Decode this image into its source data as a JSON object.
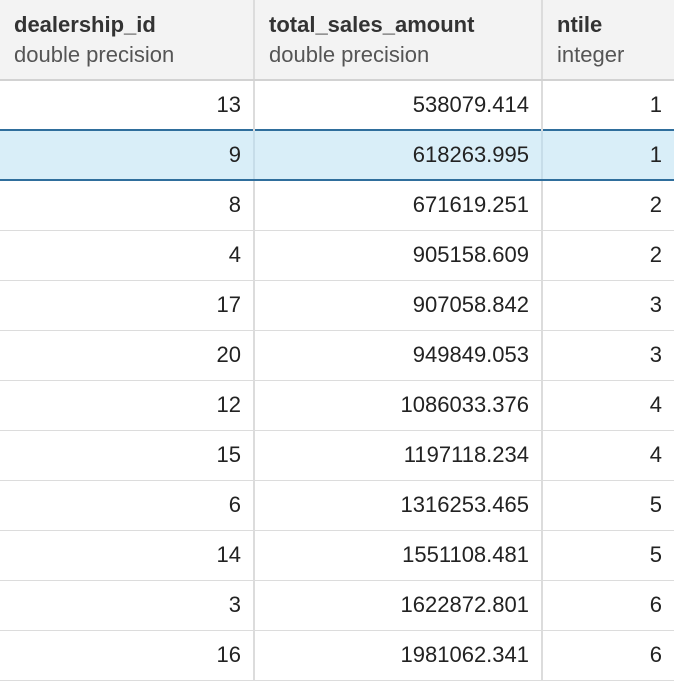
{
  "columns": [
    {
      "name": "dealership_id",
      "type": "double precision"
    },
    {
      "name": "total_sales_amount",
      "type": "double precision"
    },
    {
      "name": "ntile",
      "type": "integer"
    }
  ],
  "rows": [
    {
      "dealership_id": "13",
      "total_sales_amount": "538079.414",
      "ntile": "1",
      "selected": false
    },
    {
      "dealership_id": "9",
      "total_sales_amount": "618263.995",
      "ntile": "1",
      "selected": true
    },
    {
      "dealership_id": "8",
      "total_sales_amount": "671619.251",
      "ntile": "2",
      "selected": false
    },
    {
      "dealership_id": "4",
      "total_sales_amount": "905158.609",
      "ntile": "2",
      "selected": false
    },
    {
      "dealership_id": "17",
      "total_sales_amount": "907058.842",
      "ntile": "3",
      "selected": false
    },
    {
      "dealership_id": "20",
      "total_sales_amount": "949849.053",
      "ntile": "3",
      "selected": false
    },
    {
      "dealership_id": "12",
      "total_sales_amount": "1086033.376",
      "ntile": "4",
      "selected": false
    },
    {
      "dealership_id": "15",
      "total_sales_amount": "1197118.234",
      "ntile": "4",
      "selected": false
    },
    {
      "dealership_id": "6",
      "total_sales_amount": "1316253.465",
      "ntile": "5",
      "selected": false
    },
    {
      "dealership_id": "14",
      "total_sales_amount": "1551108.481",
      "ntile": "5",
      "selected": false
    },
    {
      "dealership_id": "3",
      "total_sales_amount": "1622872.801",
      "ntile": "6",
      "selected": false
    },
    {
      "dealership_id": "16",
      "total_sales_amount": "1981062.341",
      "ntile": "6",
      "selected": false
    }
  ],
  "colors": {
    "header_bg": "#f3f3f3",
    "selected_row_bg": "#d9eef8",
    "selected_row_border": "#2f6e9c",
    "grid_line": "#dcdcdc"
  }
}
